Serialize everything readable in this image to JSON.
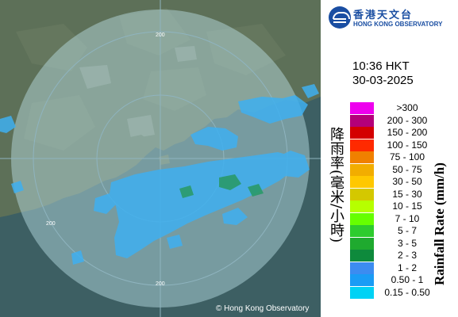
{
  "map": {
    "copyright": "© Hong Kong Observatory",
    "range_ring_label": "200",
    "colors": {
      "land": "#5d7058",
      "sea": "#3d5f63",
      "range_disc": "#bfe4ec",
      "rain_light": "#3fb0f0",
      "rain_moderate": "#2a9a6a",
      "rings": "#8fb4bf"
    }
  },
  "header": {
    "logo_zh": "香港天文台",
    "logo_en": "HONG KONG OBSERVATORY"
  },
  "timestamp": {
    "time": "10:36 HKT",
    "date": "30-03-2025"
  },
  "legend": {
    "title_zh": "降雨率(毫米/小時)",
    "title_en": "Rainfall Rate (mm/h)",
    "items": [
      {
        "range": ">300",
        "color": "#ee00ee"
      },
      {
        "range": "200 - 300",
        "color": "#b4007a"
      },
      {
        "range": "150 - 200",
        "color": "#d40000"
      },
      {
        "range": "100 - 150",
        "color": "#ff2a00"
      },
      {
        "range": "75 - 100",
        "color": "#f08000"
      },
      {
        "range": "50 - 75",
        "color": "#f2ad00"
      },
      {
        "range": "30 - 50",
        "color": "#ffc800"
      },
      {
        "range": "15 - 30",
        "color": "#d4c800"
      },
      {
        "range": "10 - 15",
        "color": "#b6ff00"
      },
      {
        "range": "7 - 10",
        "color": "#66ff00"
      },
      {
        "range": "5 - 7",
        "color": "#2ecc2e"
      },
      {
        "range": "3 - 5",
        "color": "#1faa2f"
      },
      {
        "range": "2 - 3",
        "color": "#0e8a3c"
      },
      {
        "range": "1 - 2",
        "color": "#3c8cf0"
      },
      {
        "range": "0.50 - 1",
        "color": "#1a9cf5"
      },
      {
        "range": "0.15 - 0.50",
        "color": "#00d2f5"
      }
    ]
  }
}
